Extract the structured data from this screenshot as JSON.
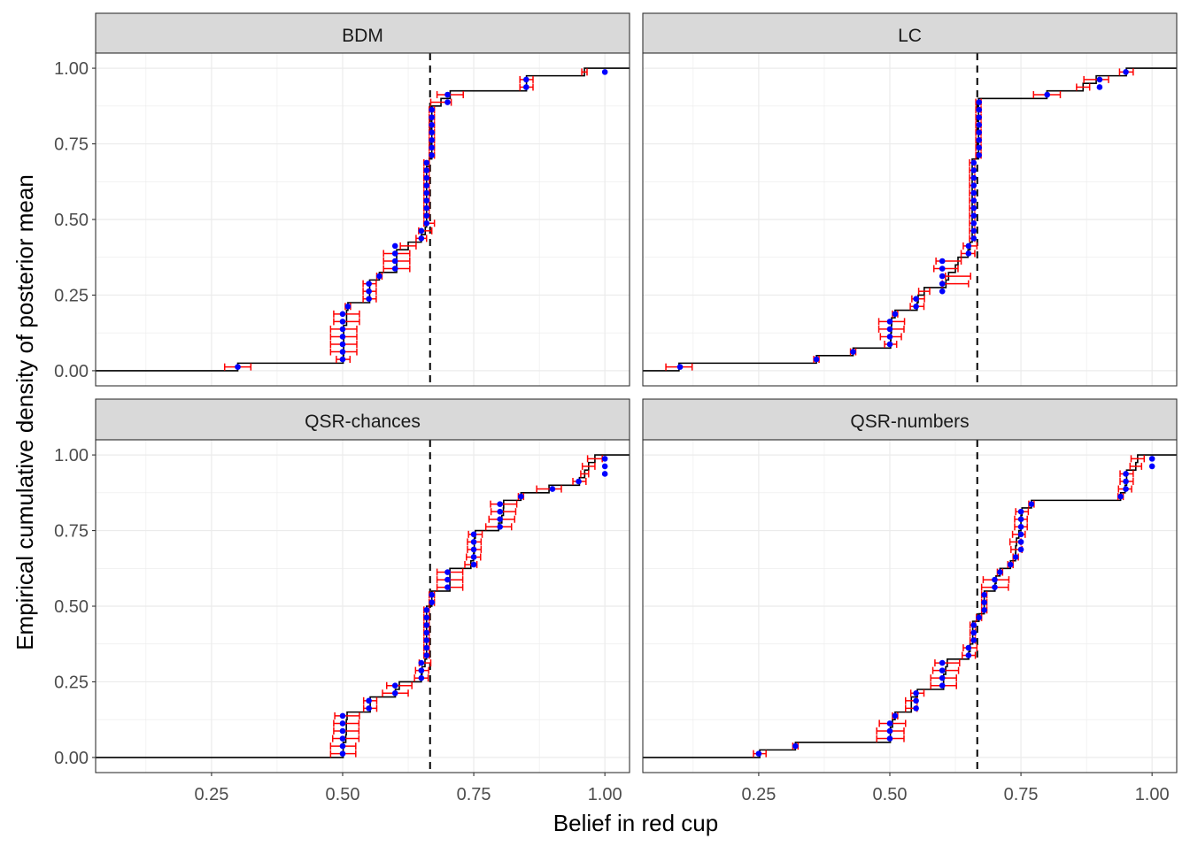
{
  "chart_data": {
    "type": "scatter",
    "layout": "facet grid 2x2",
    "xlabel": "Belief in red cup",
    "ylabel": "Empirical cumulative density of posterior mean",
    "xlim": [
      0.029,
      1.047
    ],
    "ylim": [
      -0.05,
      1.05
    ],
    "x_ticks": [
      "0.25",
      "0.50",
      "0.75",
      "1.00"
    ],
    "x_tick_values": [
      0.25,
      0.5,
      0.75,
      1.0
    ],
    "y_ticks": [
      "0.00",
      "0.25",
      "0.50",
      "0.75",
      "1.00"
    ],
    "y_tick_values": [
      0,
      0.25,
      0.5,
      0.75,
      1.0
    ],
    "grid": true,
    "reference_line": {
      "x": 0.6667,
      "style": "dashed",
      "color": "#000000"
    },
    "colors": {
      "point": "#0000ff",
      "error_bar": "#ff0000",
      "step": "#000000",
      "strip": "#d9d9d9"
    },
    "point_format": "[posterior mean, interval low, interval high]",
    "panels": [
      {
        "title": "BDM",
        "points": [
          [
            0.3,
            0.275,
            0.325
          ],
          [
            0.5,
            0.488,
            0.514
          ],
          [
            0.5,
            0.477,
            0.527
          ],
          [
            0.5,
            0.477,
            0.527
          ],
          [
            0.5,
            0.477,
            0.527
          ],
          [
            0.5,
            0.477,
            0.527
          ],
          [
            0.5,
            0.483,
            0.532
          ],
          [
            0.5,
            0.483,
            0.532
          ],
          [
            0.51,
            0.505,
            0.515
          ],
          [
            0.55,
            0.539,
            0.564
          ],
          [
            0.55,
            0.539,
            0.564
          ],
          [
            0.55,
            0.539,
            0.564
          ],
          [
            0.57,
            0.565,
            0.575
          ],
          [
            0.6,
            0.578,
            0.628
          ],
          [
            0.6,
            0.578,
            0.628
          ],
          [
            0.6,
            0.578,
            0.628
          ],
          [
            0.6,
            0.61,
            0.64
          ],
          [
            0.65,
            0.64,
            0.66
          ],
          [
            0.65,
            0.645,
            0.67
          ],
          [
            0.66,
            0.655,
            0.675
          ],
          [
            0.66,
            0.655,
            0.665
          ],
          [
            0.66,
            0.655,
            0.665
          ],
          [
            0.66,
            0.655,
            0.665
          ],
          [
            0.66,
            0.655,
            0.665
          ],
          [
            0.66,
            0.655,
            0.665
          ],
          [
            0.66,
            0.655,
            0.665
          ],
          [
            0.66,
            0.655,
            0.665
          ],
          [
            0.66,
            0.655,
            0.665
          ],
          [
            0.67,
            0.665,
            0.675
          ],
          [
            0.67,
            0.665,
            0.675
          ],
          [
            0.67,
            0.665,
            0.675
          ],
          [
            0.67,
            0.665,
            0.675
          ],
          [
            0.67,
            0.665,
            0.675
          ],
          [
            0.67,
            0.665,
            0.675
          ],
          [
            0.67,
            0.665,
            0.675
          ],
          [
            0.7,
            0.668,
            0.707
          ],
          [
            0.7,
            0.68,
            0.73
          ],
          [
            0.85,
            0.838,
            0.863
          ],
          [
            0.85,
            0.838,
            0.863
          ],
          [
            1.0,
            0.956,
            0.966
          ]
        ]
      },
      {
        "title": "LC",
        "points": [
          [
            0.1,
            0.073,
            0.123
          ],
          [
            0.36,
            0.355,
            0.365
          ],
          [
            0.43,
            0.425,
            0.435
          ],
          [
            0.5,
            0.49,
            0.513
          ],
          [
            0.5,
            0.482,
            0.522
          ],
          [
            0.5,
            0.479,
            0.527
          ],
          [
            0.5,
            0.479,
            0.528
          ],
          [
            0.51,
            0.505,
            0.515
          ],
          [
            0.55,
            0.539,
            0.565
          ],
          [
            0.55,
            0.542,
            0.566
          ],
          [
            0.6,
            0.555,
            0.576
          ],
          [
            0.6,
            0.6,
            0.65
          ],
          [
            0.6,
            0.606,
            0.654
          ],
          [
            0.6,
            0.584,
            0.63
          ],
          [
            0.6,
            0.588,
            0.636
          ],
          [
            0.65,
            0.636,
            0.662
          ],
          [
            0.65,
            0.64,
            0.666
          ],
          [
            0.66,
            0.652,
            0.662
          ],
          [
            0.66,
            0.652,
            0.662
          ],
          [
            0.66,
            0.652,
            0.662
          ],
          [
            0.66,
            0.652,
            0.662
          ],
          [
            0.66,
            0.652,
            0.662
          ],
          [
            0.66,
            0.652,
            0.662
          ],
          [
            0.66,
            0.652,
            0.662
          ],
          [
            0.66,
            0.652,
            0.662
          ],
          [
            0.66,
            0.652,
            0.662
          ],
          [
            0.66,
            0.652,
            0.662
          ],
          [
            0.66,
            0.652,
            0.662
          ],
          [
            0.67,
            0.664,
            0.674
          ],
          [
            0.67,
            0.664,
            0.674
          ],
          [
            0.67,
            0.664,
            0.674
          ],
          [
            0.67,
            0.664,
            0.674
          ],
          [
            0.67,
            0.664,
            0.674
          ],
          [
            0.67,
            0.664,
            0.674
          ],
          [
            0.67,
            0.664,
            0.674
          ],
          [
            0.67,
            0.664,
            0.674
          ],
          [
            0.8,
            0.774,
            0.825
          ],
          [
            0.9,
            0.856,
            0.881
          ],
          [
            0.9,
            0.87,
            0.917
          ],
          [
            0.95,
            0.938,
            0.964
          ]
        ]
      },
      {
        "title": "QSR-chances",
        "points": [
          [
            0.5,
            0.477,
            0.525
          ],
          [
            0.5,
            0.477,
            0.525
          ],
          [
            0.5,
            0.481,
            0.531
          ],
          [
            0.5,
            0.483,
            0.531
          ],
          [
            0.5,
            0.483,
            0.531
          ],
          [
            0.5,
            0.485,
            0.532
          ],
          [
            0.55,
            0.54,
            0.565
          ],
          [
            0.55,
            0.54,
            0.565
          ],
          [
            0.6,
            0.576,
            0.625
          ],
          [
            0.6,
            0.584,
            0.632
          ],
          [
            0.65,
            0.637,
            0.663
          ],
          [
            0.65,
            0.639,
            0.664
          ],
          [
            0.65,
            0.646,
            0.668
          ],
          [
            0.66,
            0.655,
            0.665
          ],
          [
            0.66,
            0.655,
            0.665
          ],
          [
            0.66,
            0.655,
            0.665
          ],
          [
            0.66,
            0.655,
            0.665
          ],
          [
            0.66,
            0.655,
            0.665
          ],
          [
            0.66,
            0.655,
            0.665
          ],
          [
            0.66,
            0.655,
            0.665
          ],
          [
            0.67,
            0.665,
            0.675
          ],
          [
            0.67,
            0.665,
            0.675
          ],
          [
            0.7,
            0.68,
            0.729
          ],
          [
            0.7,
            0.68,
            0.729
          ],
          [
            0.7,
            0.68,
            0.729
          ],
          [
            0.75,
            0.733,
            0.756
          ],
          [
            0.75,
            0.736,
            0.763
          ],
          [
            0.75,
            0.738,
            0.764
          ],
          [
            0.75,
            0.738,
            0.764
          ],
          [
            0.75,
            0.74,
            0.766
          ],
          [
            0.8,
            0.773,
            0.822
          ],
          [
            0.8,
            0.779,
            0.828
          ],
          [
            0.8,
            0.783,
            0.83
          ],
          [
            0.8,
            0.782,
            0.832
          ],
          [
            0.84,
            0.835,
            0.845
          ],
          [
            0.9,
            0.87,
            0.917
          ],
          [
            0.95,
            0.939,
            0.964
          ],
          [
            1.0,
            0.954,
            0.969
          ],
          [
            1.0,
            0.957,
            0.981
          ],
          [
            1.0,
            0.967,
            0.995
          ]
        ]
      },
      {
        "title": "QSR-numbers",
        "points": [
          [
            0.25,
            0.24,
            0.264
          ],
          [
            0.32,
            0.315,
            0.325
          ],
          [
            0.5,
            0.475,
            0.527
          ],
          [
            0.5,
            0.475,
            0.527
          ],
          [
            0.5,
            0.48,
            0.53
          ],
          [
            0.51,
            0.505,
            0.515
          ],
          [
            0.55,
            0.53,
            0.552
          ],
          [
            0.55,
            0.53,
            0.552
          ],
          [
            0.55,
            0.54,
            0.565
          ],
          [
            0.6,
            0.578,
            0.627
          ],
          [
            0.6,
            0.578,
            0.627
          ],
          [
            0.6,
            0.582,
            0.631
          ],
          [
            0.6,
            0.586,
            0.633
          ],
          [
            0.65,
            0.638,
            0.663
          ],
          [
            0.65,
            0.64,
            0.666
          ],
          [
            0.66,
            0.653,
            0.663
          ],
          [
            0.66,
            0.653,
            0.663
          ],
          [
            0.66,
            0.653,
            0.663
          ],
          [
            0.67,
            0.665,
            0.675
          ],
          [
            0.68,
            0.675,
            0.685
          ],
          [
            0.68,
            0.675,
            0.685
          ],
          [
            0.68,
            0.675,
            0.685
          ],
          [
            0.7,
            0.675,
            0.726
          ],
          [
            0.7,
            0.678,
            0.727
          ],
          [
            0.71,
            0.705,
            0.715
          ],
          [
            0.73,
            0.725,
            0.735
          ],
          [
            0.74,
            0.735,
            0.745
          ],
          [
            0.75,
            0.731,
            0.752
          ],
          [
            0.75,
            0.729,
            0.75
          ],
          [
            0.75,
            0.734,
            0.758
          ],
          [
            0.75,
            0.738,
            0.762
          ],
          [
            0.75,
            0.738,
            0.762
          ],
          [
            0.75,
            0.74,
            0.764
          ],
          [
            0.77,
            0.765,
            0.775
          ],
          [
            0.94,
            0.935,
            0.945
          ],
          [
            0.95,
            0.936,
            0.961
          ],
          [
            0.95,
            0.939,
            0.964
          ],
          [
            0.95,
            0.939,
            0.964
          ],
          [
            1.0,
            0.958,
            0.98
          ],
          [
            1.0,
            0.96,
            0.985
          ]
        ]
      }
    ]
  }
}
